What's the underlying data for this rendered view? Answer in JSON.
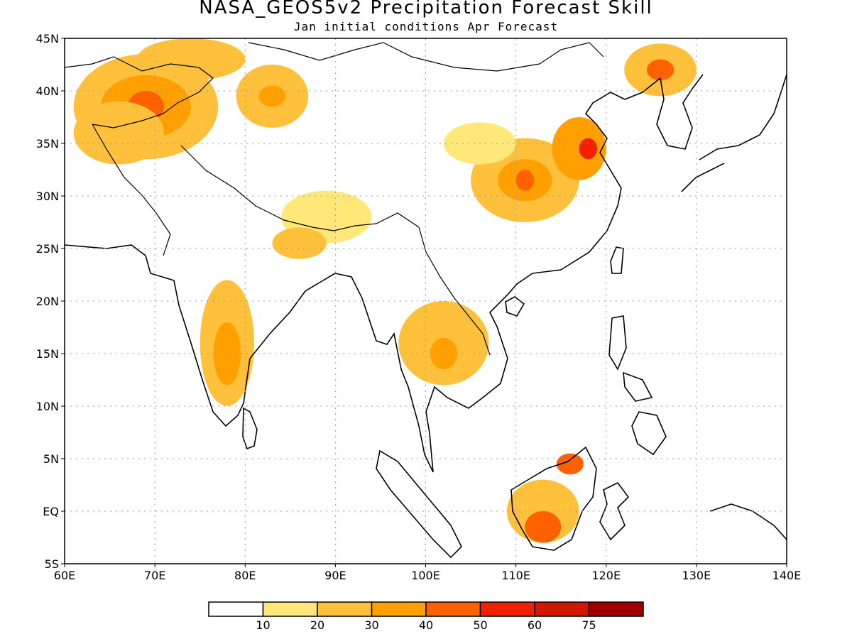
{
  "title": "NASA_GEOS5v2 Precipitation Forecast Skill",
  "subtitle": "Jan initial conditions  Apr Forecast",
  "map": {
    "lon_range": [
      60,
      140
    ],
    "lat_range": [
      -5,
      45
    ],
    "x_ticks": [
      "60E",
      "70E",
      "80E",
      "90E",
      "100E",
      "110E",
      "120E",
      "130E",
      "140E"
    ],
    "y_ticks": [
      "45N",
      "40N",
      "35N",
      "30N",
      "25N",
      "20N",
      "15N",
      "10N",
      "5N",
      "EQ",
      "5S"
    ],
    "grid": true
  },
  "legend": {
    "colors": [
      "#ffffff",
      "#ffe878",
      "#ffc03c",
      "#ffa000",
      "#ff6000",
      "#f02000",
      "#d01800",
      "#a00000"
    ],
    "labels": [
      "10",
      "20",
      "30",
      "40",
      "50",
      "60",
      "75"
    ]
  },
  "skill_regions": [
    {
      "lon": 69,
      "lat": 38.5,
      "rx": 8,
      "ry": 5,
      "level": 2
    },
    {
      "lon": 69,
      "lat": 38.5,
      "rx": 5,
      "ry": 3,
      "level": 3
    },
    {
      "lon": 69,
      "lat": 38.5,
      "rx": 2,
      "ry": 1.5,
      "level": 4
    },
    {
      "lon": 66,
      "lat": 36,
      "rx": 5,
      "ry": 3,
      "level": 2
    },
    {
      "lon": 74,
      "lat": 43,
      "rx": 6,
      "ry": 2,
      "level": 2
    },
    {
      "lon": 83,
      "lat": 39.5,
      "rx": 4,
      "ry": 3,
      "level": 2
    },
    {
      "lon": 83,
      "lat": 39.5,
      "rx": 1.5,
      "ry": 1,
      "level": 3
    },
    {
      "lon": 89,
      "lat": 28,
      "rx": 5,
      "ry": 2.5,
      "level": 1
    },
    {
      "lon": 86,
      "lat": 25.5,
      "rx": 3,
      "ry": 1.5,
      "level": 2
    },
    {
      "lon": 78,
      "lat": 16,
      "rx": 3,
      "ry": 6,
      "level": 2
    },
    {
      "lon": 78,
      "lat": 15,
      "rx": 1.5,
      "ry": 3,
      "level": 3
    },
    {
      "lon": 102,
      "lat": 16,
      "rx": 5,
      "ry": 4,
      "level": 2
    },
    {
      "lon": 102,
      "lat": 15,
      "rx": 1.5,
      "ry": 1.5,
      "level": 3
    },
    {
      "lon": 111,
      "lat": 31.5,
      "rx": 6,
      "ry": 4,
      "level": 2
    },
    {
      "lon": 111,
      "lat": 31.5,
      "rx": 3,
      "ry": 2,
      "level": 3
    },
    {
      "lon": 111,
      "lat": 31.5,
      "rx": 1,
      "ry": 1,
      "level": 4
    },
    {
      "lon": 117,
      "lat": 34.5,
      "rx": 3,
      "ry": 3,
      "level": 3
    },
    {
      "lon": 118,
      "lat": 34.5,
      "rx": 1,
      "ry": 1,
      "level": 5
    },
    {
      "lon": 106,
      "lat": 35,
      "rx": 4,
      "ry": 2,
      "level": 1
    },
    {
      "lon": 126,
      "lat": 42,
      "rx": 4,
      "ry": 2.5,
      "level": 2
    },
    {
      "lon": 126,
      "lat": 42,
      "rx": 1.5,
      "ry": 1,
      "level": 4
    },
    {
      "lon": 113,
      "lat": 0,
      "rx": 4,
      "ry": 3,
      "level": 2
    },
    {
      "lon": 113,
      "lat": -1.5,
      "rx": 2,
      "ry": 1.5,
      "level": 4
    },
    {
      "lon": 116,
      "lat": 4.5,
      "rx": 1.5,
      "ry": 1,
      "level": 4
    }
  ]
}
